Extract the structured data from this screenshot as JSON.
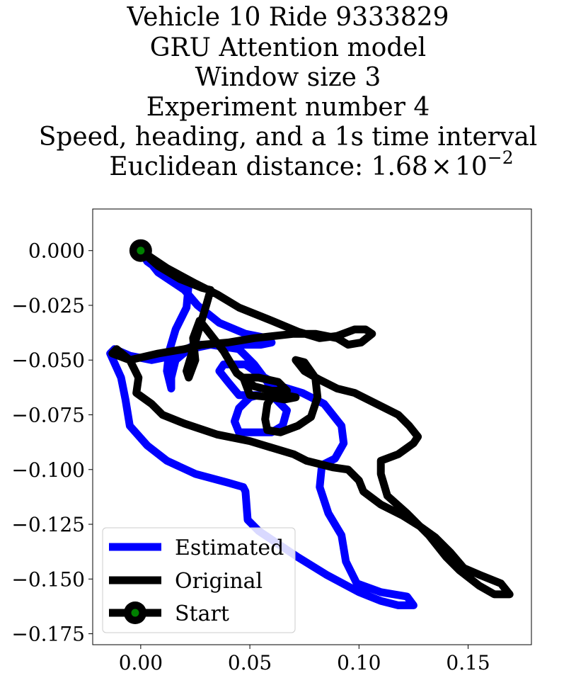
{
  "chart_data": {
    "type": "line",
    "title_lines": [
      "Vehicle 10 Ride 9333829",
      "GRU Attention model",
      "Window size 3",
      "Experiment number 4",
      "Speed, heading, and a 1s time interval"
    ],
    "title_metric": {
      "prefix": "Euclidean distance: 1.68",
      "times": "×",
      "base": "10",
      "exponent": "−2"
    },
    "xlabel": "",
    "ylabel": "",
    "xlim": [
      -0.022,
      0.179
    ],
    "ylim": [
      -0.18,
      0.019
    ],
    "x_ticks": [
      {
        "value": 0.0,
        "label": "0.00"
      },
      {
        "value": 0.05,
        "label": "0.05"
      },
      {
        "value": 0.1,
        "label": "0.10"
      },
      {
        "value": 0.15,
        "label": "0.15"
      }
    ],
    "y_ticks": [
      {
        "value": 0.0,
        "label": "0.000"
      },
      {
        "value": -0.025,
        "label": "−0.025"
      },
      {
        "value": -0.05,
        "label": "−0.050"
      },
      {
        "value": -0.075,
        "label": "−0.075"
      },
      {
        "value": -0.1,
        "label": "−0.100"
      },
      {
        "value": -0.125,
        "label": "−0.125"
      },
      {
        "value": -0.15,
        "label": "−0.150"
      },
      {
        "value": -0.175,
        "label": "−0.175"
      }
    ],
    "grid": false,
    "legend_position": "lower-left",
    "series": [
      {
        "name": "Estimated",
        "color": "#0000ff",
        "points": [
          [
            0.0,
            0.0
          ],
          [
            0.003,
            -0.005
          ],
          [
            0.01,
            -0.01
          ],
          [
            0.022,
            -0.015
          ],
          [
            0.021,
            -0.026
          ],
          [
            0.016,
            -0.036
          ],
          [
            0.013,
            -0.046
          ],
          [
            0.012,
            -0.055
          ],
          [
            0.014,
            -0.063
          ],
          [
            0.014,
            -0.058
          ],
          [
            0.016,
            -0.05
          ],
          [
            0.022,
            -0.045
          ],
          [
            0.032,
            -0.043
          ],
          [
            0.045,
            -0.045
          ],
          [
            0.052,
            -0.052
          ],
          [
            0.058,
            -0.06
          ],
          [
            0.062,
            -0.068
          ],
          [
            0.067,
            -0.073
          ],
          [
            0.065,
            -0.08
          ],
          [
            0.06,
            -0.083
          ],
          [
            0.045,
            -0.083
          ],
          [
            0.043,
            -0.078
          ],
          [
            0.045,
            -0.072
          ],
          [
            0.05,
            -0.067
          ],
          [
            0.054,
            -0.066
          ],
          [
            0.045,
            -0.066
          ],
          [
            0.04,
            -0.06
          ],
          [
            0.036,
            -0.055
          ],
          [
            0.038,
            -0.052
          ],
          [
            0.048,
            -0.052
          ],
          [
            0.055,
            -0.057
          ],
          [
            0.064,
            -0.062
          ],
          [
            0.074,
            -0.065
          ],
          [
            0.084,
            -0.07
          ],
          [
            0.092,
            -0.08
          ],
          [
            0.093,
            -0.088
          ],
          [
            0.089,
            -0.095
          ],
          [
            0.083,
            -0.098
          ],
          [
            0.082,
            -0.108
          ],
          [
            0.086,
            -0.12
          ],
          [
            0.092,
            -0.13
          ],
          [
            0.094,
            -0.142
          ],
          [
            0.099,
            -0.152
          ],
          [
            0.11,
            -0.156
          ],
          [
            0.122,
            -0.158
          ],
          [
            0.125,
            -0.162
          ],
          [
            0.118,
            -0.162
          ],
          [
            0.11,
            -0.16
          ],
          [
            0.1,
            -0.156
          ],
          [
            0.085,
            -0.148
          ],
          [
            0.072,
            -0.14
          ],
          [
            0.06,
            -0.132
          ],
          [
            0.054,
            -0.128
          ],
          [
            0.049,
            -0.123
          ],
          [
            0.048,
            -0.11
          ],
          [
            0.047,
            -0.108
          ],
          [
            0.04,
            -0.106
          ],
          [
            0.025,
            -0.102
          ],
          [
            0.012,
            -0.096
          ],
          [
            0.003,
            -0.089
          ],
          [
            -0.005,
            -0.08
          ],
          [
            -0.007,
            -0.068
          ],
          [
            -0.009,
            -0.058
          ],
          [
            -0.014,
            -0.047
          ],
          [
            -0.012,
            -0.045
          ],
          [
            -0.005,
            -0.048
          ],
          [
            0.005,
            -0.05
          ],
          [
            0.015,
            -0.048
          ],
          [
            0.025,
            -0.043
          ],
          [
            0.04,
            -0.043
          ],
          [
            0.055,
            -0.043
          ],
          [
            0.06,
            -0.042
          ],
          [
            0.058,
            -0.04
          ],
          [
            0.048,
            -0.038
          ],
          [
            0.036,
            -0.033
          ],
          [
            0.026,
            -0.025
          ],
          [
            0.02,
            -0.018
          ],
          [
            0.008,
            -0.01
          ],
          [
            0.0,
            0.0
          ]
        ]
      },
      {
        "name": "Original",
        "color": "#000000",
        "points": [
          [
            0.0,
            0.0
          ],
          [
            0.012,
            -0.008
          ],
          [
            0.025,
            -0.015
          ],
          [
            0.035,
            -0.02
          ],
          [
            0.045,
            -0.026
          ],
          [
            0.06,
            -0.032
          ],
          [
            0.072,
            -0.037
          ],
          [
            0.082,
            -0.04
          ],
          [
            0.09,
            -0.039
          ],
          [
            0.098,
            -0.036
          ],
          [
            0.103,
            -0.036
          ],
          [
            0.106,
            -0.038
          ],
          [
            0.101,
            -0.042
          ],
          [
            0.095,
            -0.043
          ],
          [
            0.09,
            -0.04
          ],
          [
            0.08,
            -0.038
          ],
          [
            0.07,
            -0.038
          ],
          [
            0.052,
            -0.04
          ],
          [
            0.04,
            -0.042
          ],
          [
            0.028,
            -0.043
          ],
          [
            0.02,
            -0.045
          ],
          [
            0.008,
            -0.047
          ],
          [
            -0.005,
            -0.05
          ],
          [
            -0.013,
            -0.047
          ],
          [
            -0.011,
            -0.045
          ],
          [
            -0.005,
            -0.05
          ],
          [
            -0.001,
            -0.058
          ],
          [
            -0.002,
            -0.065
          ],
          [
            0.005,
            -0.07
          ],
          [
            0.01,
            -0.075
          ],
          [
            0.02,
            -0.079
          ],
          [
            0.035,
            -0.084
          ],
          [
            0.05,
            -0.087
          ],
          [
            0.06,
            -0.09
          ],
          [
            0.07,
            -0.093
          ],
          [
            0.076,
            -0.096
          ],
          [
            0.088,
            -0.099
          ],
          [
            0.095,
            -0.1
          ],
          [
            0.1,
            -0.105
          ],
          [
            0.102,
            -0.11
          ],
          [
            0.11,
            -0.116
          ],
          [
            0.12,
            -0.121
          ],
          [
            0.128,
            -0.126
          ],
          [
            0.135,
            -0.131
          ],
          [
            0.142,
            -0.138
          ],
          [
            0.148,
            -0.145
          ],
          [
            0.155,
            -0.148
          ],
          [
            0.165,
            -0.152
          ],
          [
            0.169,
            -0.157
          ],
          [
            0.162,
            -0.157
          ],
          [
            0.155,
            -0.153
          ],
          [
            0.146,
            -0.146
          ],
          [
            0.14,
            -0.14
          ],
          [
            0.132,
            -0.13
          ],
          [
            0.122,
            -0.12
          ],
          [
            0.113,
            -0.112
          ],
          [
            0.11,
            -0.102
          ],
          [
            0.11,
            -0.096
          ],
          [
            0.118,
            -0.093
          ],
          [
            0.125,
            -0.088
          ],
          [
            0.127,
            -0.085
          ],
          [
            0.123,
            -0.08
          ],
          [
            0.118,
            -0.075
          ],
          [
            0.108,
            -0.07
          ],
          [
            0.098,
            -0.065
          ],
          [
            0.09,
            -0.063
          ],
          [
            0.082,
            -0.059
          ],
          [
            0.075,
            -0.055
          ],
          [
            0.071,
            -0.05
          ],
          [
            0.075,
            -0.051
          ],
          [
            0.08,
            -0.058
          ],
          [
            0.081,
            -0.067
          ],
          [
            0.078,
            -0.076
          ],
          [
            0.072,
            -0.08
          ],
          [
            0.064,
            -0.083
          ],
          [
            0.058,
            -0.082
          ],
          [
            0.057,
            -0.077
          ],
          [
            0.058,
            -0.07
          ],
          [
            0.06,
            -0.067
          ],
          [
            0.066,
            -0.066
          ],
          [
            0.071,
            -0.067
          ],
          [
            0.066,
            -0.068
          ],
          [
            0.06,
            -0.067
          ],
          [
            0.05,
            -0.066
          ],
          [
            0.047,
            -0.058
          ],
          [
            0.054,
            -0.058
          ],
          [
            0.063,
            -0.06
          ],
          [
            0.067,
            -0.064
          ],
          [
            0.06,
            -0.064
          ],
          [
            0.052,
            -0.062
          ],
          [
            0.044,
            -0.056
          ],
          [
            0.038,
            -0.046
          ],
          [
            0.031,
            -0.037
          ],
          [
            0.027,
            -0.032
          ],
          [
            0.024,
            -0.04
          ],
          [
            0.025,
            -0.05
          ],
          [
            0.022,
            -0.058
          ],
          [
            0.021,
            -0.055
          ],
          [
            0.024,
            -0.045
          ],
          [
            0.027,
            -0.035
          ],
          [
            0.03,
            -0.025
          ],
          [
            0.032,
            -0.018
          ],
          [
            0.028,
            -0.017
          ],
          [
            0.018,
            -0.013
          ],
          [
            0.008,
            -0.007
          ],
          [
            0.0,
            0.0
          ]
        ]
      }
    ],
    "start": {
      "name": "Start",
      "point": [
        0.0,
        0.0
      ],
      "outer_color": "#000000",
      "inner_color": "#008000"
    }
  }
}
